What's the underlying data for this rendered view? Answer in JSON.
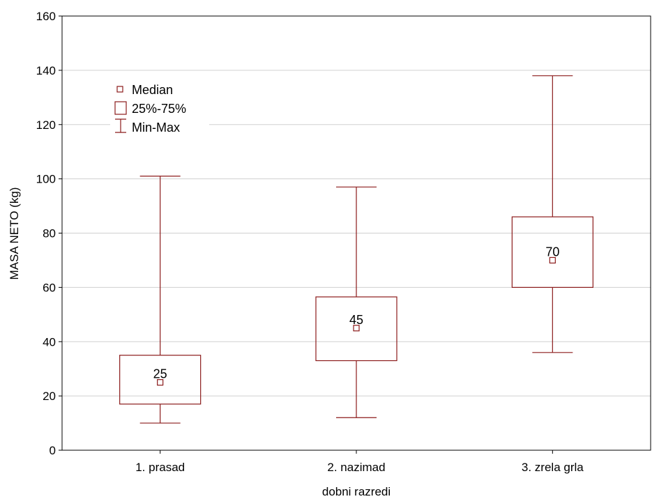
{
  "chart_data": {
    "type": "box",
    "xlabel": "dobni razredi",
    "ylabel": "MASA NETO (kg)",
    "ylim": [
      0,
      160
    ],
    "yticks": [
      "0",
      "20",
      "40",
      "60",
      "80",
      "100",
      "120",
      "140",
      "160"
    ],
    "grid": true,
    "legend_position": "top-left",
    "legend": [
      "Median",
      "25%-75%",
      "Min-Max"
    ],
    "color": "#8B1A1A",
    "categories": [
      "1. prasad",
      "2. nazimad",
      "3. zrela grla"
    ],
    "boxes": [
      {
        "category": "1. prasad",
        "min": 10,
        "q1": 17,
        "median": 25,
        "q3": 35,
        "max": 101,
        "label": "25"
      },
      {
        "category": "2. nazimad",
        "min": 12,
        "q1": 33,
        "median": 45,
        "q3": 56.5,
        "max": 97,
        "label": "45"
      },
      {
        "category": "3. zrela grla",
        "min": 36,
        "q1": 60,
        "median": 70,
        "q3": 86,
        "max": 138,
        "label": "70"
      }
    ]
  }
}
